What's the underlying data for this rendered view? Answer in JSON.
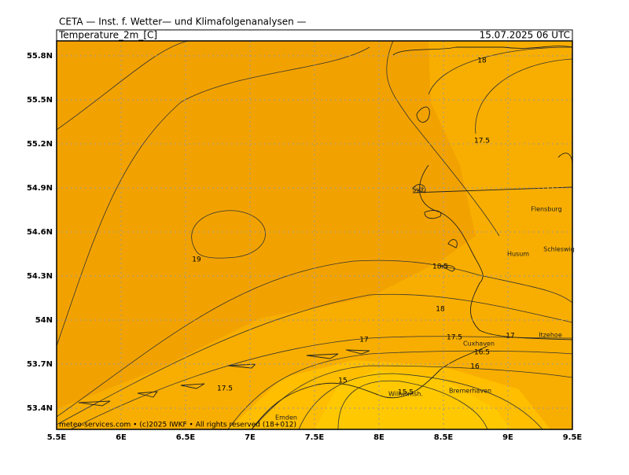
{
  "header": {
    "source": "CETA — Inst. f. Wetter— und Klimafolgenanalysen —",
    "variable": "Temperature_2m_[C]",
    "valid": "15.07.2025 06 UTC"
  },
  "axes": {
    "x_labels": [
      "5.5E",
      "6E",
      "6.5E",
      "7E",
      "7.5E",
      "8E",
      "8.5E",
      "9E",
      "9.5E"
    ],
    "y_labels": [
      "55.8N",
      "55.5N",
      "55.2N",
      "54.9N",
      "54.6N",
      "54.3N",
      "54N",
      "53.7N",
      "53.4N"
    ]
  },
  "contour_labels": [
    "18",
    "17.5",
    "19",
    "18.5",
    "18",
    "17",
    "17.5",
    "17",
    "16.5",
    "16",
    "17.5",
    "15",
    "15.5"
  ],
  "places": [
    "Sylt",
    "Flensburg",
    "Husum",
    "Schleswig",
    "Itzehoe",
    "Cuxhaven",
    "Bremerhaven",
    "Wilhelmsh.",
    "Emden"
  ],
  "footer": "meteo-services.com • (c)2025 IWKF • All rights reserved (18+012)"
}
